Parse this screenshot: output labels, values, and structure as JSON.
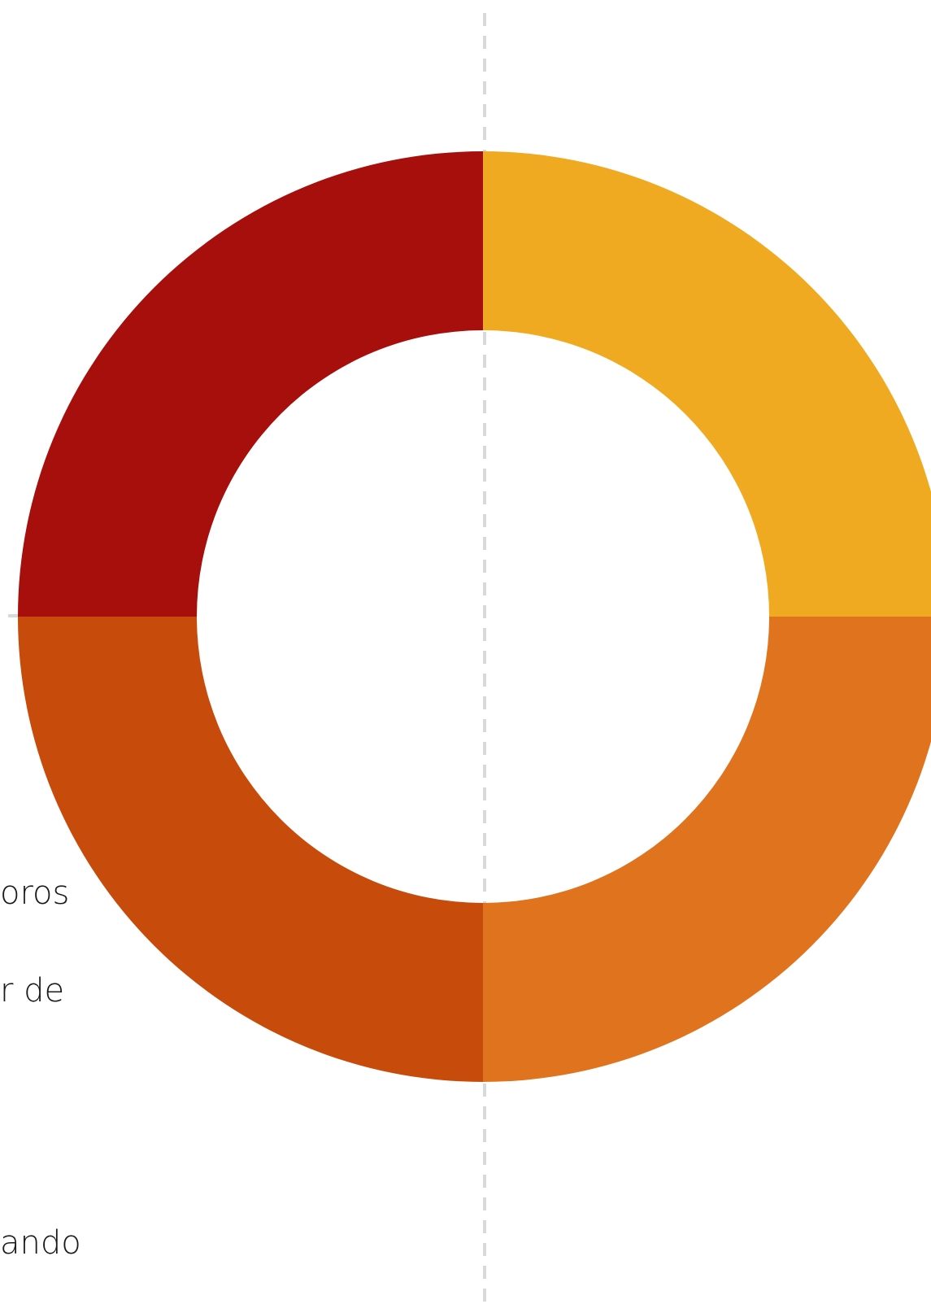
{
  "chart_data": {
    "type": "pie",
    "variant": "donut",
    "title": "",
    "slices": [
      {
        "value": 25,
        "color": "#EFAA22"
      },
      {
        "value": 25,
        "color": "#E0731D"
      },
      {
        "value": 25,
        "color": "#C74B0B"
      },
      {
        "value": 25,
        "color": "#A60F0B"
      }
    ],
    "grid": false,
    "legend": "none"
  },
  "text_fragments": [
    "oros",
    "r de",
    "ando"
  ]
}
